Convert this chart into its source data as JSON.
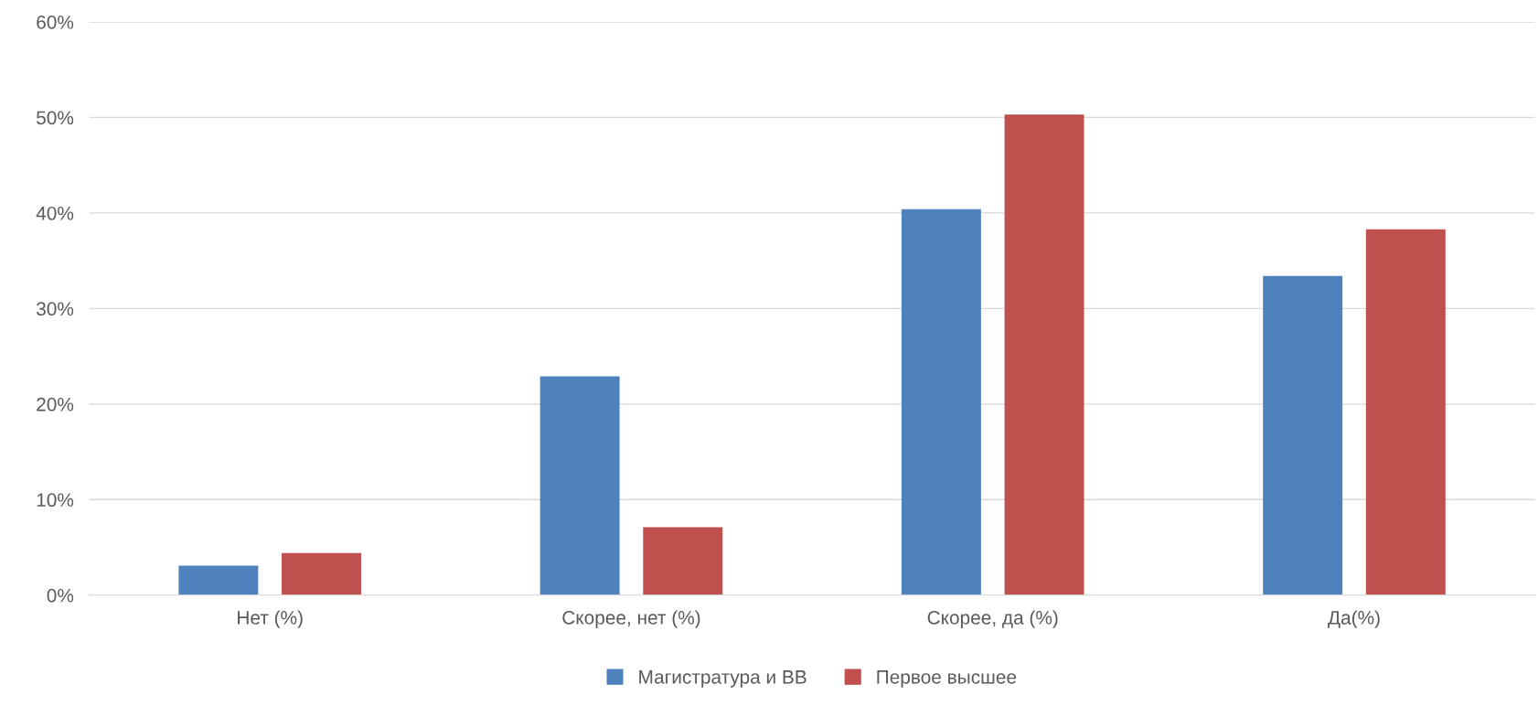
{
  "chart_data": {
    "type": "bar",
    "categories": [
      "Нет (%)",
      "Скорее, нет (%)",
      "Скорее, да (%)",
      "Да(%)"
    ],
    "series": [
      {
        "name": "Магистратура и ВВ",
        "color": "#4f81bd",
        "values": [
          3.1,
          22.9,
          40.4,
          33.4
        ]
      },
      {
        "name": "Первое высшее",
        "color": "#c0504d",
        "values": [
          4.4,
          7.1,
          50.3,
          38.3
        ]
      }
    ],
    "ylim": [
      0,
      60
    ],
    "yticks": [
      {
        "value": 0,
        "label": "0%"
      },
      {
        "value": 10,
        "label": "10%"
      },
      {
        "value": 20,
        "label": "20%"
      },
      {
        "value": 30,
        "label": "30%"
      },
      {
        "value": 40,
        "label": "40%"
      },
      {
        "value": 50,
        "label": "50%"
      },
      {
        "value": 60,
        "label": "60%"
      }
    ],
    "grid": "y",
    "legend": "bottom"
  }
}
